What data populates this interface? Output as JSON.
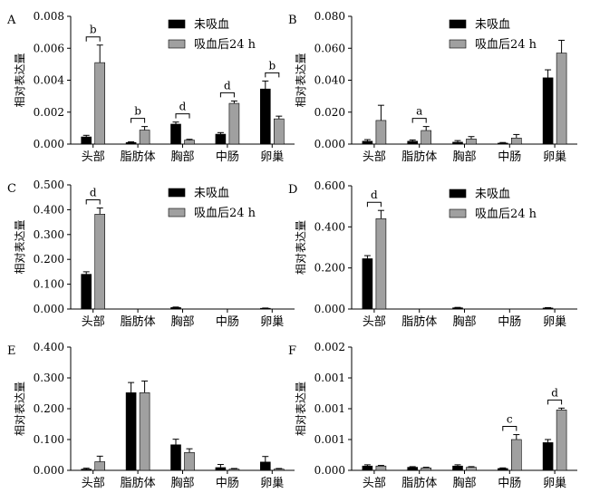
{
  "colors": {
    "untreated": "#000000",
    "fed24h": "#a0a0a0"
  },
  "chart_data": [
    {
      "panel": "A",
      "type": "bar",
      "categories": [
        "头部",
        "脂肪体",
        "胸部",
        "中肠",
        "卵巢"
      ],
      "ylabel": "相对表达量",
      "ylim": [
        0,
        0.008
      ],
      "yticks": [
        "0.000",
        "0.002",
        "0.004",
        "0.006",
        "0.008"
      ],
      "legend": [
        "未吸血",
        "吸血后24 h"
      ],
      "series": [
        {
          "name": "未吸血",
          "values": [
            0.00045,
            0.0001,
            0.00125,
            0.00062,
            0.00345
          ],
          "errors": [
            0.0001,
            4e-05,
            0.00013,
            0.0001,
            0.0005
          ]
        },
        {
          "name": "吸血后24 h",
          "values": [
            0.0051,
            0.00088,
            0.00025,
            0.00255,
            0.00158
          ],
          "errors": [
            0.0011,
            0.00022,
            5e-05,
            0.00015,
            0.00017
          ]
        }
      ],
      "annotations": [
        {
          "label": "b",
          "category": 0
        },
        {
          "label": "b",
          "category": 1
        },
        {
          "label": "d",
          "category": 2
        },
        {
          "label": "d",
          "category": 3
        },
        {
          "label": "b",
          "category": 4
        }
      ]
    },
    {
      "panel": "B",
      "type": "bar",
      "categories": [
        "头部",
        "脂肪体",
        "胸部",
        "中肠",
        "卵巢"
      ],
      "ylabel": "相对表达量",
      "ylim": [
        0,
        0.08
      ],
      "yticks": [
        "0.000",
        "0.020",
        "0.040",
        "0.060",
        "0.080"
      ],
      "legend": [
        "未吸血",
        "吸血后24 h"
      ],
      "series": [
        {
          "name": "未吸血",
          "values": [
            0.0018,
            0.0018,
            0.0012,
            0.0006,
            0.0415
          ],
          "errors": [
            0.001,
            0.0008,
            0.001,
            0.0004,
            0.005
          ]
        },
        {
          "name": "吸血后24 h",
          "values": [
            0.0148,
            0.0085,
            0.0032,
            0.0038,
            0.057
          ],
          "errors": [
            0.0095,
            0.0025,
            0.0015,
            0.0022,
            0.008
          ]
        }
      ],
      "annotations": [
        {
          "label": "a",
          "category": 1
        }
      ]
    },
    {
      "panel": "C",
      "type": "bar",
      "categories": [
        "头部",
        "脂肪体",
        "胸部",
        "中肠",
        "卵巢"
      ],
      "ylabel": "相对表达量",
      "ylim": [
        0,
        0.5
      ],
      "yticks": [
        "0.000",
        "0.100",
        "0.200",
        "0.300",
        "0.400",
        "0.500"
      ],
      "legend": [
        "未吸血",
        "吸血后24 h"
      ],
      "series": [
        {
          "name": "未吸血",
          "values": [
            0.14,
            0.0,
            0.006,
            0.0,
            0.003
          ],
          "errors": [
            0.01,
            0.0,
            0.002,
            0.0,
            0.001
          ]
        },
        {
          "name": "吸血后24 h",
          "values": [
            0.382,
            0.0,
            0.0,
            0.0,
            0.0
          ],
          "errors": [
            0.025,
            0.0,
            0.0,
            0.0,
            0.0
          ]
        }
      ],
      "annotations": [
        {
          "label": "d",
          "category": 0
        }
      ]
    },
    {
      "panel": "D",
      "type": "bar",
      "categories": [
        "头部",
        "脂肪体",
        "胸部",
        "中肠",
        "卵巢"
      ],
      "ylabel": "相对表达量",
      "ylim": [
        0,
        0.6
      ],
      "yticks": [
        "0.000",
        "0.200",
        "0.400",
        "0.600"
      ],
      "legend": [
        "未吸血",
        "吸血后24 h"
      ],
      "series": [
        {
          "name": "未吸血",
          "values": [
            0.245,
            0.0,
            0.006,
            0.0,
            0.005
          ],
          "errors": [
            0.015,
            0.0,
            0.002,
            0.0,
            0.002
          ]
        },
        {
          "name": "吸血后24 h",
          "values": [
            0.44,
            0.0,
            0.0,
            0.0,
            0.0
          ],
          "errors": [
            0.04,
            0.0,
            0.0,
            0.0,
            0.0
          ]
        }
      ],
      "annotations": [
        {
          "label": "d",
          "category": 0
        }
      ]
    },
    {
      "panel": "E",
      "type": "bar",
      "categories": [
        "头部",
        "脂肪体",
        "胸部",
        "中肠",
        "卵巢"
      ],
      "ylabel": "相对表达量",
      "ylim": [
        0,
        0.4
      ],
      "yticks": [
        "0.000",
        "0.100",
        "0.200",
        "0.300",
        "0.400"
      ],
      "series": [
        {
          "values": [
            0.004,
            0.252,
            0.083,
            0.009,
            0.027
          ],
          "errors": [
            0.003,
            0.033,
            0.018,
            0.01,
            0.018
          ]
        },
        {
          "values": [
            0.028,
            0.252,
            0.058,
            0.004,
            0.004
          ],
          "errors": [
            0.018,
            0.038,
            0.012,
            0.002,
            0.002
          ]
        }
      ],
      "annotations": []
    },
    {
      "panel": "F",
      "type": "bar",
      "categories": [
        "头部",
        "脂肪体",
        "胸部",
        "中肠",
        "卵巢"
      ],
      "ylabel": "相对表达量",
      "ylim": [
        0,
        0.002
      ],
      "yticks": [
        "0.000",
        "0.001",
        "0.001",
        "0.001",
        "0.002"
      ],
      "series": [
        {
          "values": [
            7e-05,
            5e-05,
            7e-05,
            3e-05,
            0.00045
          ],
          "errors": [
            2e-05,
            1e-05,
            2e-05,
            1e-05,
            5e-05
          ]
        },
        {
          "values": [
            7e-05,
            4e-05,
            5e-05,
            0.0005,
            0.00098
          ],
          "errors": [
            1e-05,
            1e-05,
            1e-05,
            8e-05,
            3e-05
          ]
        }
      ],
      "annotations": [
        {
          "label": "c",
          "category": 3
        },
        {
          "label": "d",
          "category": 4
        }
      ]
    }
  ]
}
